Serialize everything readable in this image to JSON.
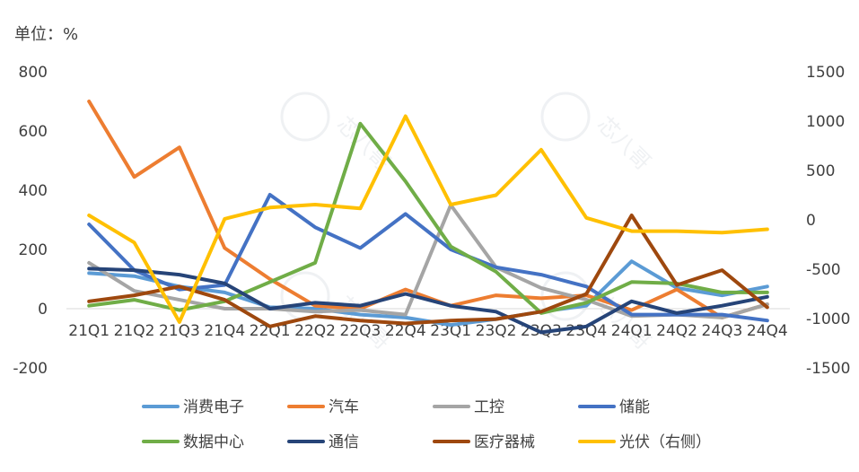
{
  "chart_data": {
    "type": "line",
    "unit_label": "单位：%",
    "categories": [
      "21Q1",
      "21Q2",
      "21Q3",
      "21Q4",
      "22Q1",
      "22Q2",
      "22Q3",
      "22Q4",
      "23Q1",
      "23Q2",
      "23Q3",
      "23Q4",
      "24Q1",
      "24Q2",
      "24Q3",
      "24Q4"
    ],
    "category_tick_labels": [
      "21Q1",
      "21Q2",
      "21Q3",
      "21Q4",
      "22Q1",
      "22Q2",
      "22Q3",
      "22Q4",
      "23Q1",
      "23Q2",
      "23Q3",
      "23Q4",
      "24Q1",
      "24Q2",
      "24Q3",
      "24Q4"
    ],
    "y_left": {
      "min": -200,
      "max": 800,
      "ticks": [
        "-200",
        "0",
        "200",
        "400",
        "600",
        "800"
      ]
    },
    "y_right": {
      "min": -1500,
      "max": 1500,
      "ticks": [
        "-1500",
        "-1000",
        "-500",
        "0",
        "500",
        "1000",
        "1500"
      ]
    },
    "grid": false,
    "legend_position": "bottom",
    "series": [
      {
        "name": "消费电子",
        "color": "#5B9BD5",
        "axis": "left",
        "values": [
          120,
          110,
          75,
          55,
          5,
          0,
          -20,
          -30,
          -55,
          -35,
          -10,
          10,
          160,
          70,
          45,
          75
        ]
      },
      {
        "name": "汽车",
        "color": "#ED7D31",
        "axis": "left",
        "values": [
          700,
          445,
          545,
          205,
          100,
          10,
          0,
          65,
          10,
          45,
          35,
          45,
          -5,
          65,
          -30,
          15
        ]
      },
      {
        "name": "工控",
        "color": "#A5A5A5",
        "axis": "left",
        "values": [
          155,
          60,
          30,
          0,
          0,
          -10,
          -5,
          -20,
          350,
          140,
          70,
          30,
          -25,
          -20,
          -30,
          15
        ]
      },
      {
        "name": "储能",
        "color": "#4472C4",
        "axis": "left",
        "values": [
          285,
          130,
          65,
          80,
          385,
          275,
          205,
          320,
          200,
          140,
          115,
          75,
          -20,
          -20,
          -20,
          -40
        ]
      },
      {
        "name": "数据中心",
        "color": "#70AD47",
        "axis": "left",
        "values": [
          10,
          30,
          -5,
          25,
          90,
          155,
          625,
          430,
          210,
          125,
          -15,
          20,
          90,
          85,
          55,
          55
        ]
      },
      {
        "name": "通信",
        "color": "#264478",
        "axis": "left",
        "values": [
          135,
          130,
          115,
          85,
          0,
          20,
          10,
          50,
          10,
          -10,
          -80,
          -60,
          25,
          -15,
          10,
          40
        ]
      },
      {
        "name": "医疗器械",
        "color": "#9E480E",
        "axis": "left",
        "values": [
          25,
          45,
          75,
          30,
          -60,
          -25,
          -40,
          -50,
          -40,
          -35,
          -10,
          50,
          315,
          80,
          130,
          5
        ]
      },
      {
        "name": "光伏（右侧）",
        "color": "#FFC000",
        "axis": "right",
        "values": [
          45,
          -230,
          -1035,
          10,
          125,
          155,
          115,
          1050,
          155,
          250,
          710,
          20,
          -115,
          -115,
          -130,
          -95
        ]
      }
    ]
  },
  "watermark": "芯八哥"
}
